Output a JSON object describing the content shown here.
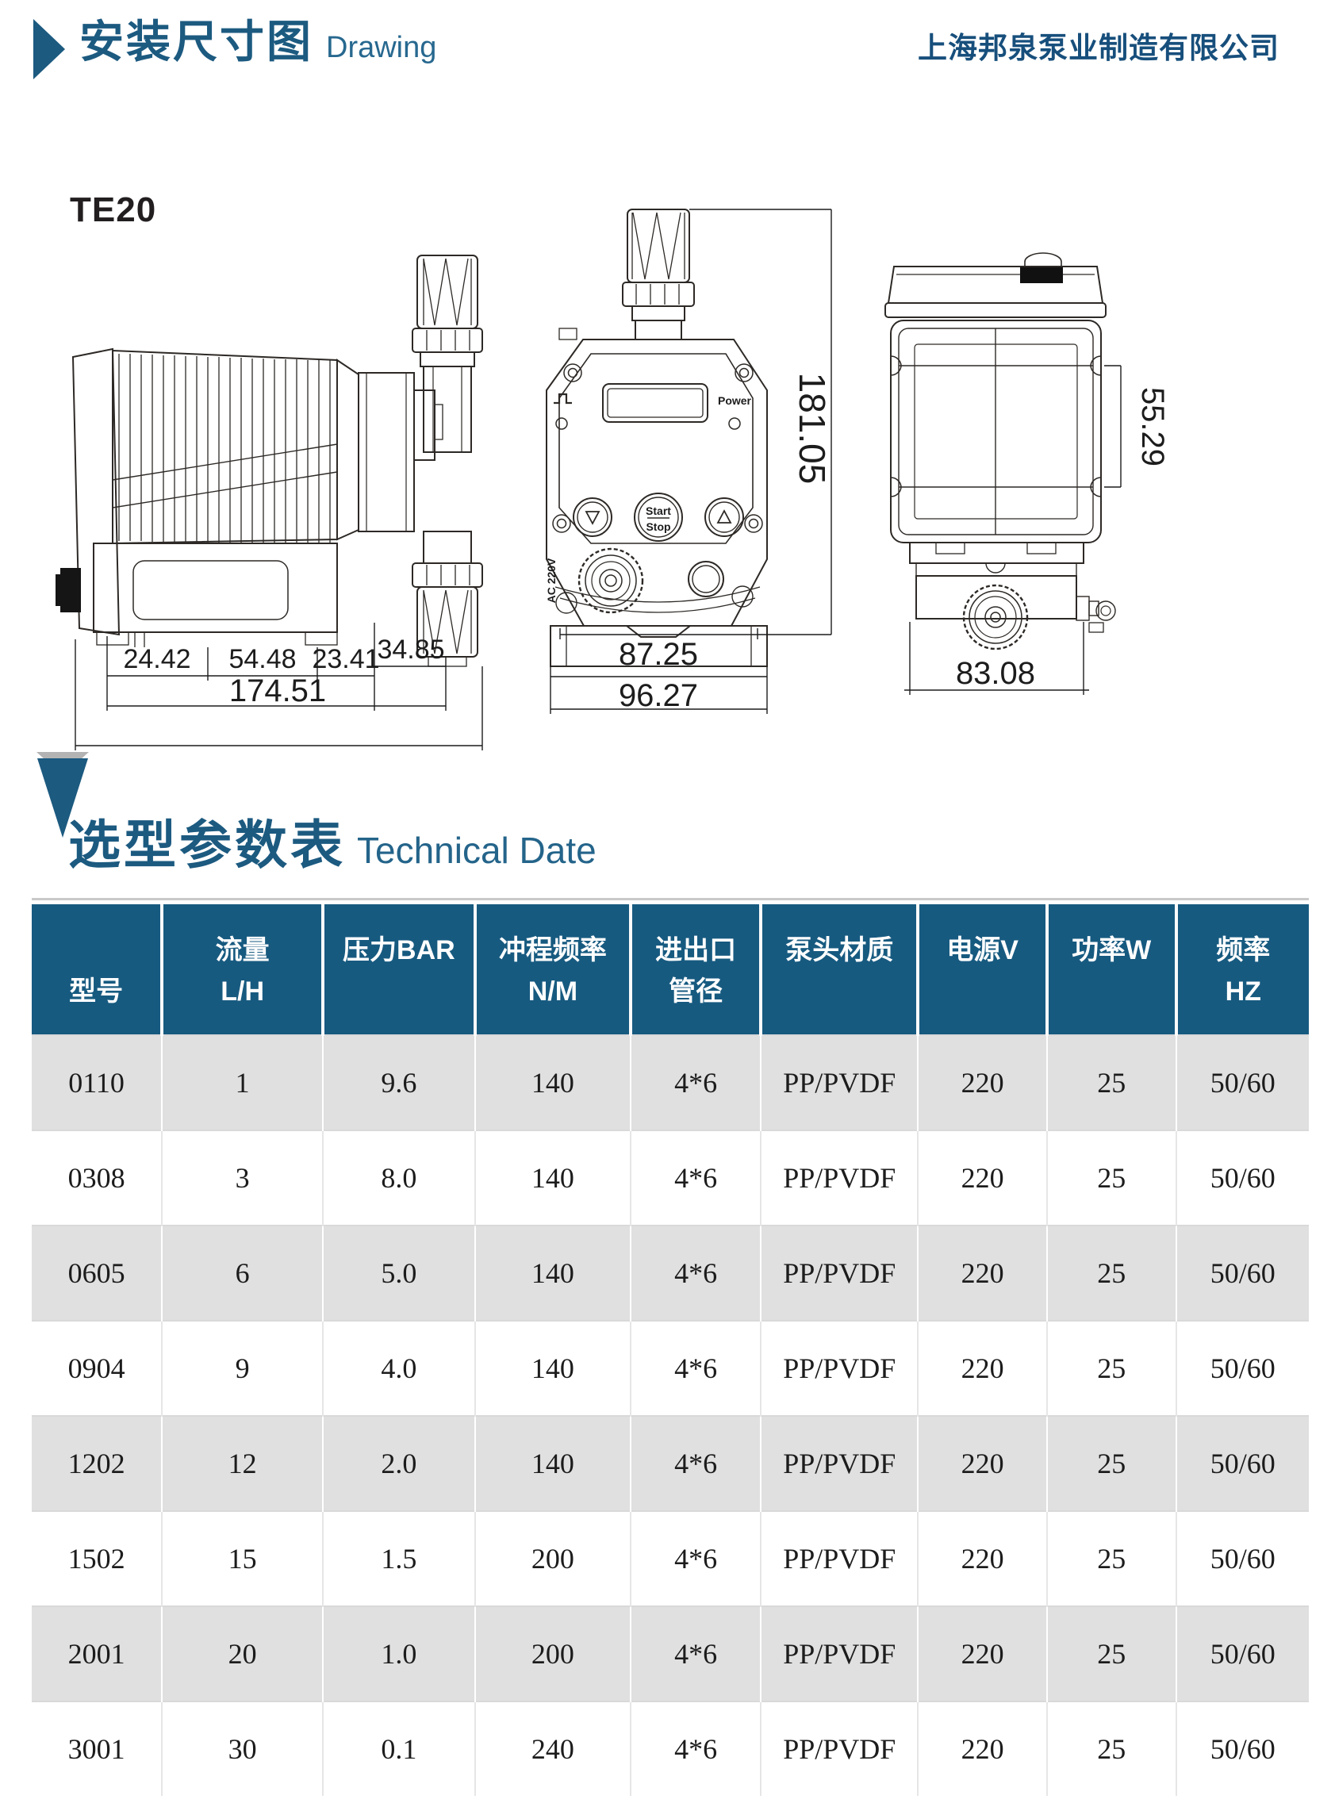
{
  "header": {
    "title_zh": "安装尺寸图",
    "title_en": "Drawing",
    "company": "上海邦泉泵业制造有限公司"
  },
  "drawing": {
    "model_label": "TE20",
    "dims": {
      "side_seg1": "24.42",
      "side_seg2": "54.48",
      "side_seg3": "23.41",
      "side_seg4": "34.85",
      "side_total": "174.51",
      "front_height": "181.05",
      "front_width_inner": "87.25",
      "front_width_outer": "96.27",
      "rear_hole_span": "55.29",
      "rear_width": "83.08"
    },
    "labels": {
      "power": "Power",
      "start": "Start",
      "stop": "Stop",
      "ac": "AC 220V"
    }
  },
  "section": {
    "title_zh": "选型参数表",
    "title_en": "Technical Date"
  },
  "table": {
    "headers": [
      {
        "line1": "",
        "line2": "型号"
      },
      {
        "line1": "流量",
        "line2": "L/H"
      },
      {
        "line1": "压力BAR",
        "line2": ""
      },
      {
        "line1": "冲程频率",
        "line2": "N/M"
      },
      {
        "line1": "进出口",
        "line2": "管径"
      },
      {
        "line1": "泵头材质",
        "line2": ""
      },
      {
        "line1": "电源V",
        "line2": ""
      },
      {
        "line1": "功率W",
        "line2": ""
      },
      {
        "line1": "频率",
        "line2": "HZ"
      }
    ],
    "rows": [
      [
        "0110",
        "1",
        "9.6",
        "140",
        "4*6",
        "PP/PVDF",
        "220",
        "25",
        "50/60"
      ],
      [
        "0308",
        "3",
        "8.0",
        "140",
        "4*6",
        "PP/PVDF",
        "220",
        "25",
        "50/60"
      ],
      [
        "0605",
        "6",
        "5.0",
        "140",
        "4*6",
        "PP/PVDF",
        "220",
        "25",
        "50/60"
      ],
      [
        "0904",
        "9",
        "4.0",
        "140",
        "4*6",
        "PP/PVDF",
        "220",
        "25",
        "50/60"
      ],
      [
        "1202",
        "12",
        "2.0",
        "140",
        "4*6",
        "PP/PVDF",
        "220",
        "25",
        "50/60"
      ],
      [
        "1502",
        "15",
        "1.5",
        "200",
        "4*6",
        "PP/PVDF",
        "220",
        "25",
        "50/60"
      ],
      [
        "2001",
        "20",
        "1.0",
        "200",
        "4*6",
        "PP/PVDF",
        "220",
        "25",
        "50/60"
      ],
      [
        "3001",
        "30",
        "0.1",
        "240",
        "4*6",
        "PP/PVDF",
        "220",
        "25",
        "50/60"
      ]
    ]
  },
  "colors": {
    "accent_blue": "#1c5a80",
    "table_header_bg": "#175a80",
    "row_alt_bg": "#e0e0e0",
    "line_color": "#2d2926"
  }
}
